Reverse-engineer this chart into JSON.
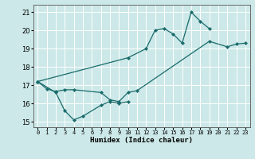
{
  "xlabel": "Humidex (Indice chaleur)",
  "bg_color": "#cce8e8",
  "grid_color": "#ffffff",
  "line_color": "#1a6b6b",
  "xlim": [
    -0.5,
    23.5
  ],
  "ylim": [
    14.7,
    21.4
  ],
  "xticks": [
    0,
    1,
    2,
    3,
    4,
    5,
    6,
    7,
    8,
    9,
    10,
    11,
    12,
    13,
    14,
    15,
    16,
    17,
    18,
    19,
    20,
    21,
    22,
    23
  ],
  "yticks": [
    15,
    16,
    17,
    18,
    19,
    20,
    21
  ],
  "lineA_x": [
    0,
    1,
    2,
    3,
    4,
    7,
    8,
    9,
    10,
    11,
    19,
    21,
    22,
    23
  ],
  "lineA_y": [
    17.2,
    16.8,
    16.65,
    16.75,
    16.75,
    16.6,
    16.2,
    16.1,
    16.6,
    16.7,
    19.4,
    19.1,
    19.25,
    19.3
  ],
  "lineB_x": [
    0,
    10,
    12,
    13,
    14,
    15,
    16,
    17,
    18,
    19
  ],
  "lineB_y": [
    17.2,
    18.5,
    19.0,
    20.0,
    20.1,
    19.8,
    19.3,
    21.0,
    20.5,
    20.1
  ],
  "lineC_x": [
    0,
    2,
    3,
    4,
    5,
    7,
    8,
    9,
    10
  ],
  "lineC_y": [
    17.2,
    16.6,
    15.6,
    15.1,
    15.3,
    15.9,
    16.1,
    16.0,
    16.1
  ]
}
